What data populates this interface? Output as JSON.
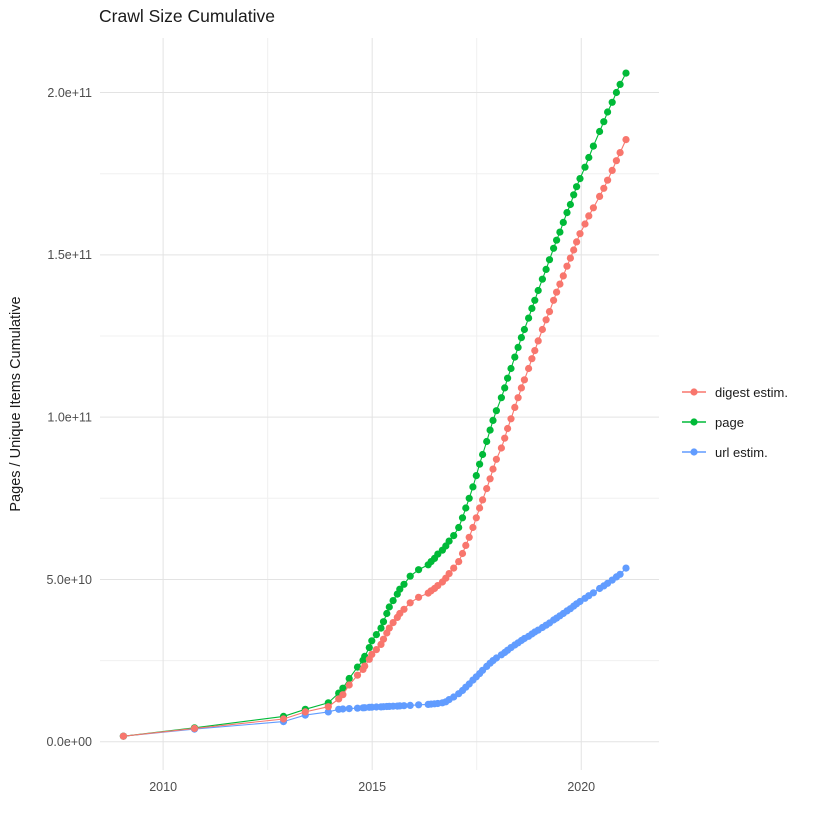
{
  "chart_data": {
    "type": "scatter",
    "title": "Crawl Size Cumulative",
    "xlabel": "",
    "ylabel": "Pages / Unique Items Cumulative",
    "x_unit": "year (crawl date)",
    "value_unit": "items cumulative",
    "unit_multiplier": 1000000000.0,
    "xlim": [
      2008.49,
      2021.86
    ],
    "ylim": [
      -8700000000.0,
      216800000000.0
    ],
    "grid": true,
    "legend_position": "right",
    "x_tick_labels": [
      "2010",
      "2015",
      "2020"
    ],
    "x_major_ticks": [
      2010,
      2015,
      2020
    ],
    "x_minor_gridlines": [
      2012.5,
      2017.5
    ],
    "y_tick_labels": [
      "0.0e+00",
      "5.0e+10",
      "1.0e+11",
      "1.5e+11",
      "2.0e+11"
    ],
    "y_major_ticks": [
      0,
      50000000000.0,
      100000000000.0,
      150000000000.0,
      200000000000.0
    ],
    "y_minor_gridlines": [
      25000000000.0,
      75000000000.0,
      125000000000.0,
      175000000000.0
    ],
    "x": [
      2009.05,
      2010.75,
      2012.88,
      2013.4,
      2013.95,
      2014.2,
      2014.3,
      2014.45,
      2014.65,
      2014.78,
      2014.82,
      2014.93,
      2014.99,
      2015.1,
      2015.21,
      2015.27,
      2015.35,
      2015.41,
      2015.5,
      2015.6,
      2015.66,
      2015.76,
      2015.91,
      2016.11,
      2016.34,
      2016.41,
      2016.49,
      2016.57,
      2016.68,
      2016.76,
      2016.84,
      2016.95,
      2017.07,
      2017.16,
      2017.24,
      2017.32,
      2017.41,
      2017.49,
      2017.57,
      2017.64,
      2017.74,
      2017.82,
      2017.89,
      2017.97,
      2018.09,
      2018.17,
      2018.24,
      2018.32,
      2018.41,
      2018.49,
      2018.57,
      2018.64,
      2018.74,
      2018.82,
      2018.89,
      2018.97,
      2019.07,
      2019.16,
      2019.24,
      2019.34,
      2019.41,
      2019.49,
      2019.57,
      2019.66,
      2019.74,
      2019.82,
      2019.89,
      2019.97,
      2020.09,
      2020.18,
      2020.29,
      2020.44,
      2020.54,
      2020.63,
      2020.74,
      2020.84,
      2020.93,
      2021.07
    ],
    "series": [
      {
        "name": "digest estim.",
        "color": "#F8766D",
        "values_e9": [
          1.7,
          4.1,
          7.0,
          9.2,
          10.8,
          13.2,
          14.5,
          17.5,
          20.5,
          22.3,
          23.3,
          25.4,
          26.9,
          28.4,
          30.0,
          31.6,
          33.5,
          35.0,
          36.7,
          38.3,
          39.5,
          40.8,
          42.8,
          44.5,
          45.8,
          46.5,
          47.2,
          48.1,
          49.2,
          50.4,
          51.8,
          53.5,
          55.5,
          58.0,
          60.5,
          63.0,
          66.0,
          69.0,
          72.0,
          74.5,
          78.0,
          81.0,
          84.0,
          87.0,
          90.5,
          93.5,
          96.5,
          99.5,
          103.0,
          106.0,
          109.0,
          111.5,
          115.0,
          118.0,
          120.5,
          123.5,
          127.0,
          130.0,
          132.5,
          136.0,
          138.5,
          141.0,
          143.5,
          146.5,
          149.0,
          151.5,
          154.0,
          156.5,
          159.5,
          162.0,
          164.5,
          168.0,
          170.5,
          173.0,
          176.0,
          179.0,
          181.5,
          185.5
        ]
      },
      {
        "name": "page",
        "color": "#00BA38",
        "values_e9": [
          1.7,
          4.3,
          7.8,
          10.0,
          12.0,
          15.0,
          16.5,
          19.5,
          23.0,
          25.1,
          26.3,
          29.0,
          31.1,
          33.0,
          35.0,
          37.0,
          39.5,
          41.5,
          43.5,
          45.5,
          47.0,
          48.5,
          51.0,
          53.0,
          54.5,
          55.5,
          56.5,
          57.8,
          59.0,
          60.3,
          61.8,
          63.5,
          66.0,
          69.0,
          72.0,
          75.0,
          78.5,
          82.0,
          85.5,
          88.5,
          92.5,
          96.0,
          99.0,
          102.0,
          106.0,
          109.0,
          112.0,
          115.0,
          118.5,
          121.5,
          124.5,
          127.0,
          130.5,
          133.5,
          136.0,
          139.0,
          142.5,
          145.5,
          148.5,
          152.0,
          154.5,
          157.0,
          160.0,
          163.0,
          165.5,
          168.5,
          171.0,
          173.5,
          177.0,
          180.0,
          183.5,
          188.0,
          191.0,
          194.0,
          197.0,
          200.0,
          202.5,
          206.0
        ]
      },
      {
        "name": "url estim.",
        "color": "#619CFF",
        "values_e9": [
          1.7,
          3.9,
          6.2,
          8.2,
          9.2,
          10.0,
          10.1,
          10.2,
          10.35,
          10.45,
          10.5,
          10.6,
          10.65,
          10.7,
          10.75,
          10.8,
          10.85,
          10.9,
          10.95,
          11.0,
          11.05,
          11.1,
          11.2,
          11.4,
          11.5,
          11.6,
          11.7,
          11.8,
          12.0,
          12.3,
          13.0,
          13.8,
          14.8,
          15.8,
          16.8,
          17.8,
          19.0,
          20.0,
          21.0,
          22.0,
          23.2,
          24.2,
          25.0,
          25.8,
          26.8,
          27.5,
          28.2,
          29.0,
          29.8,
          30.5,
          31.2,
          31.8,
          32.5,
          33.2,
          33.8,
          34.4,
          35.2,
          35.9,
          36.6,
          37.5,
          38.1,
          38.8,
          39.5,
          40.3,
          41.0,
          41.8,
          42.5,
          43.2,
          44.2,
          45.0,
          45.9,
          47.2,
          48.0,
          48.8,
          49.8,
          50.8,
          51.6,
          53.5
        ]
      }
    ]
  }
}
